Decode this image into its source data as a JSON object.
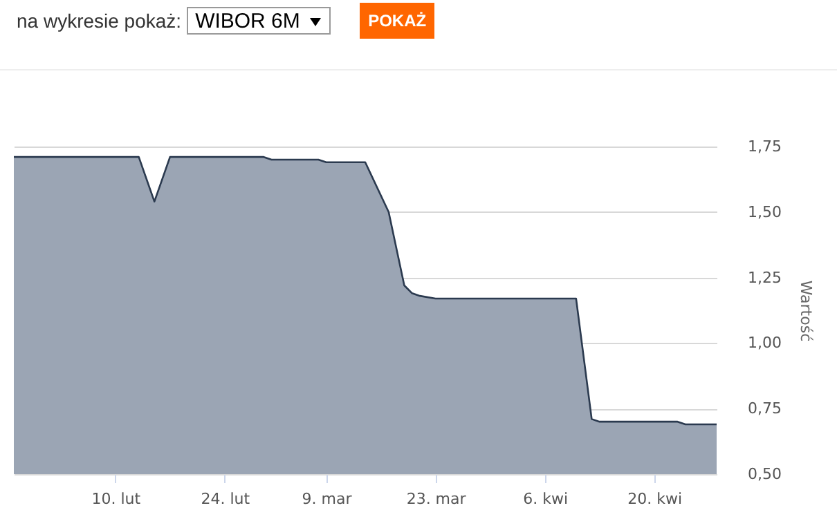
{
  "chart_data": {
    "type": "area",
    "ylabel": "Wartość",
    "annotations": [
      "na wykresie pokaż:",
      "WIBOR 6M",
      "POKAŻ"
    ],
    "x": [
      "--01-28",
      "--02-13",
      "--02-15",
      "--02-17",
      "--03-01",
      "--03-02",
      "--03-08",
      "--03-09",
      "--03-14",
      "--03-17",
      "--03-19",
      "--03-20",
      "--03-21",
      "--03-23",
      "--04-10",
      "--04-12",
      "--04-13",
      "--04-23",
      "--04-24",
      "--04-28"
    ],
    "series": [
      {
        "color": "#9ba5b4",
        "values": [
          1.71,
          1.71,
          1.54,
          1.71,
          1.71,
          1.7,
          1.7,
          1.69,
          1.69,
          1.5,
          1.22,
          1.19,
          1.18,
          1.17,
          1.17,
          0.71,
          0.7,
          0.7,
          0.69,
          0.69
        ]
      }
    ],
    "xlim": [
      "--01-28",
      "--04-28"
    ],
    "xticks": [
      {
        "value": "--02-10",
        "label": "10. lut"
      },
      {
        "value": "--02-24",
        "label": "24. lut"
      },
      {
        "value": "--03-09",
        "label": "9. mar"
      },
      {
        "value": "--03-23",
        "label": "23. mar"
      },
      {
        "value": "--04-06",
        "label": "6. kwi"
      },
      {
        "value": "--04-20",
        "label": "20. kwi"
      }
    ],
    "ylim": [
      0.5,
      1.75
    ],
    "yticks": [
      {
        "value": 0.5,
        "label": "0,50"
      },
      {
        "value": 0.75,
        "label": "0,75"
      },
      {
        "value": 1,
        "label": "1,00"
      },
      {
        "value": 1.25,
        "label": "1,25"
      },
      {
        "value": 1.5,
        "label": "1,50"
      },
      {
        "value": 1.75,
        "label": "1,75"
      }
    ],
    "grid": "y"
  }
}
